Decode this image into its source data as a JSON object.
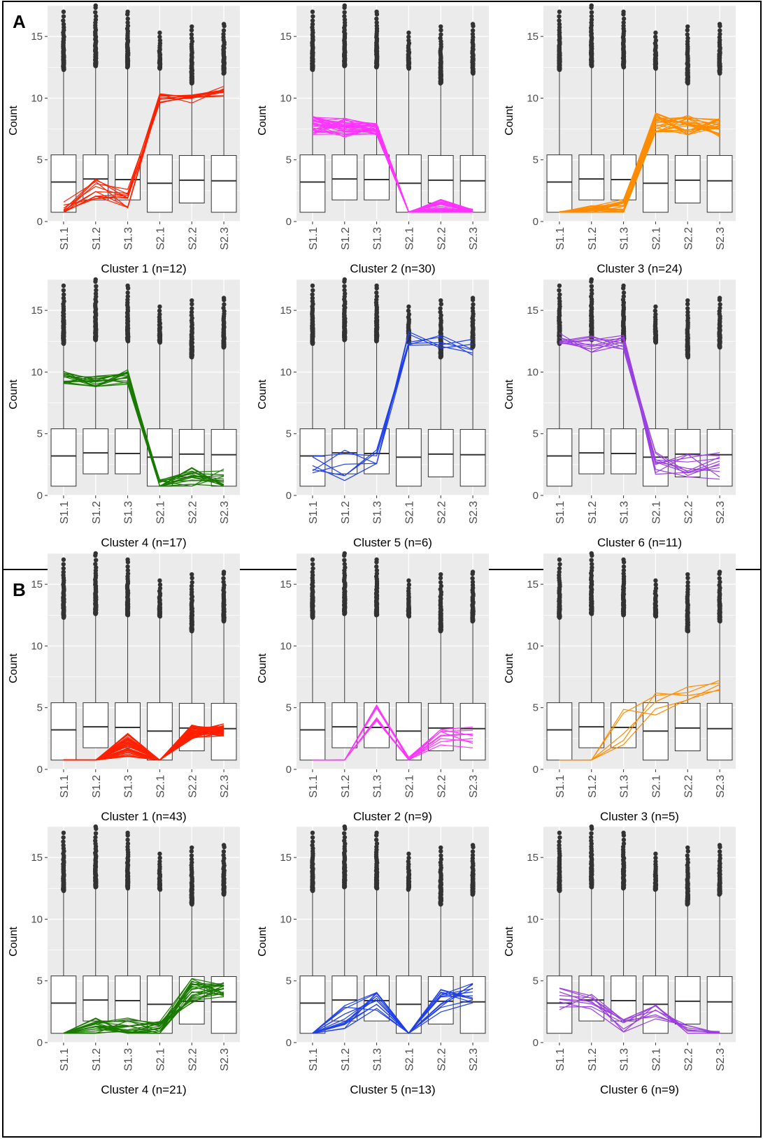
{
  "figure": {
    "panels": [
      {
        "label": "A",
        "clusters": [
          0,
          1,
          2,
          3,
          4,
          5
        ]
      },
      {
        "label": "B",
        "clusters": [
          6,
          7,
          8,
          9,
          10,
          11
        ]
      }
    ]
  },
  "colors": {
    "plot_bg": "#EBEBEB",
    "grid": "#FFFFFF",
    "box_edge": "#333333",
    "outlier": "#333333",
    "red": "#FF2000",
    "magenta": "#FF33FF",
    "orange": "#FF8C00",
    "green": "#1A7A00",
    "blue": "#1F3FE8",
    "purple": "#9A3FE0"
  },
  "chart_data": [
    {
      "type": "box+line",
      "panel": "A",
      "title": "Cluster 1 (n=12)",
      "ylabel": "Count",
      "categories": [
        "S1.1",
        "S1.2",
        "S1.3",
        "S2.1",
        "S2.2",
        "S2.3"
      ],
      "ylim": [
        0,
        17.5
      ],
      "yticks": [
        0,
        5,
        10,
        15
      ],
      "line_color": "red",
      "n_lines": 12,
      "profile": [
        0.8,
        2.5,
        1.8,
        10,
        10,
        10.5
      ],
      "spread": [
        0.8,
        1,
        0.9,
        0.4,
        0.4,
        0.5
      ]
    },
    {
      "type": "box+line",
      "panel": "A",
      "title": "Cluster 2 (n=30)",
      "ylabel": "Count",
      "categories": [
        "S1.1",
        "S1.2",
        "S1.3",
        "S2.1",
        "S2.2",
        "S2.3"
      ],
      "ylim": [
        0,
        17.5
      ],
      "yticks": [
        0,
        5,
        10,
        15
      ],
      "line_color": "magenta",
      "n_lines": 30,
      "profile": [
        7.8,
        7.6,
        7.5,
        0.75,
        1.2,
        0.8
      ],
      "spread": [
        0.8,
        0.8,
        0.5,
        0.05,
        0.6,
        0.2
      ]
    },
    {
      "type": "box+line",
      "panel": "A",
      "title": "Cluster 3 (n=24)",
      "ylabel": "Count",
      "categories": [
        "S1.1",
        "S1.2",
        "S1.3",
        "S2.1",
        "S2.2",
        "S2.3"
      ],
      "ylim": [
        0,
        17.5
      ],
      "yticks": [
        0,
        5,
        10,
        15
      ],
      "line_color": "orange",
      "n_lines": 24,
      "profile": [
        0.75,
        0.9,
        1.2,
        8,
        7.8,
        7.6
      ],
      "spread": [
        0.05,
        0.4,
        0.6,
        0.8,
        0.8,
        0.8
      ]
    },
    {
      "type": "box+line",
      "panel": "A",
      "title": "Cluster 4 (n=17)",
      "ylabel": "Count",
      "categories": [
        "S1.1",
        "S1.2",
        "S1.3",
        "S2.1",
        "S2.2",
        "S2.3"
      ],
      "ylim": [
        0,
        17.5
      ],
      "yticks": [
        0,
        5,
        10,
        15
      ],
      "line_color": "green",
      "n_lines": 17,
      "profile": [
        9.5,
        9,
        9.6,
        0.8,
        1.5,
        1.2
      ],
      "spread": [
        0.6,
        0.8,
        0.6,
        0.5,
        0.8,
        1
      ]
    },
    {
      "type": "box+line",
      "panel": "A",
      "title": "Cluster 5 (n=6)",
      "ylabel": "Count",
      "categories": [
        "S1.1",
        "S1.2",
        "S1.3",
        "S2.1",
        "S2.2",
        "S2.3"
      ],
      "ylim": [
        0,
        17.5
      ],
      "yticks": [
        0,
        5,
        10,
        15
      ],
      "line_color": "blue",
      "n_lines": 6,
      "profile": [
        2.2,
        2.5,
        2.7,
        12.8,
        12.4,
        12
      ],
      "spread": [
        1,
        1.5,
        1,
        0.8,
        0.6,
        0.8
      ]
    },
    {
      "type": "box+line",
      "panel": "A",
      "title": "Cluster 6 (n=11)",
      "ylabel": "Count",
      "categories": [
        "S1.1",
        "S1.2",
        "S1.3",
        "S2.1",
        "S2.2",
        "S2.3"
      ],
      "ylim": [
        0,
        17.5
      ],
      "yticks": [
        0,
        5,
        10,
        15
      ],
      "line_color": "purple",
      "n_lines": 11,
      "profile": [
        12.6,
        12.3,
        12.4,
        2.6,
        2.5,
        2.3
      ],
      "spread": [
        0.6,
        0.7,
        0.6,
        1,
        1,
        1.2
      ]
    },
    {
      "type": "box+line",
      "panel": "B",
      "title": "Cluster 1 (n=43)",
      "ylabel": "Count",
      "categories": [
        "S1.1",
        "S1.2",
        "S1.3",
        "S2.1",
        "S2.2",
        "S2.3"
      ],
      "ylim": [
        0,
        17.5
      ],
      "yticks": [
        0,
        5,
        10,
        15
      ],
      "line_color": "red",
      "n_lines": 43,
      "profile": [
        0.75,
        0.75,
        2,
        0.75,
        3,
        3.2
      ],
      "spread": [
        0.02,
        0.02,
        1,
        0.02,
        0.6,
        0.5
      ]
    },
    {
      "type": "box+line",
      "panel": "B",
      "title": "Cluster 2 (n=9)",
      "ylabel": "Count",
      "categories": [
        "S1.1",
        "S1.2",
        "S1.3",
        "S2.1",
        "S2.2",
        "S2.3"
      ],
      "ylim": [
        0,
        17.5
      ],
      "yticks": [
        0,
        5,
        10,
        15
      ],
      "line_color": "magenta",
      "n_lines": 9,
      "profile": [
        0.75,
        0.75,
        4.8,
        0.8,
        2.6,
        2.6
      ],
      "spread": [
        0.02,
        0.02,
        1,
        0.2,
        1,
        1
      ]
    },
    {
      "type": "box+line",
      "panel": "B",
      "title": "Cluster 3 (n=5)",
      "ylabel": "Count",
      "categories": [
        "S1.1",
        "S1.2",
        "S1.3",
        "S2.1",
        "S2.2",
        "S2.3"
      ],
      "ylim": [
        0,
        17.5
      ],
      "yticks": [
        0,
        5,
        10,
        15
      ],
      "line_color": "orange",
      "n_lines": 5,
      "profile": [
        0.75,
        0.75,
        3.5,
        5,
        6,
        6.8
      ],
      "spread": [
        0.02,
        0.02,
        2,
        1.2,
        0.7,
        0.8
      ]
    },
    {
      "type": "box+line",
      "panel": "B",
      "title": "Cluster 4 (n=21)",
      "ylabel": "Count",
      "categories": [
        "S1.1",
        "S1.2",
        "S1.3",
        "S2.1",
        "S2.2",
        "S2.3"
      ],
      "ylim": [
        0,
        17.5
      ],
      "yticks": [
        0,
        5,
        10,
        15
      ],
      "line_color": "green",
      "n_lines": 21,
      "profile": [
        0.75,
        1.2,
        1.2,
        1,
        4.2,
        4.3
      ],
      "spread": [
        0.02,
        0.8,
        0.8,
        0.8,
        1,
        0.6
      ]
    },
    {
      "type": "box+line",
      "panel": "B",
      "title": "Cluster 5 (n=13)",
      "ylabel": "Count",
      "categories": [
        "S1.1",
        "S1.2",
        "S1.3",
        "S2.1",
        "S2.2",
        "S2.3"
      ],
      "ylim": [
        0,
        17.5
      ],
      "yticks": [
        0,
        5,
        10,
        15
      ],
      "line_color": "blue",
      "n_lines": 13,
      "profile": [
        0.75,
        2.2,
        3.3,
        0.75,
        3.3,
        4
      ],
      "spread": [
        0.02,
        1.2,
        0.8,
        0.02,
        1,
        0.8
      ]
    },
    {
      "type": "box+line",
      "panel": "B",
      "title": "Cluster 6 (n=9)",
      "ylabel": "Count",
      "categories": [
        "S1.1",
        "S1.2",
        "S1.3",
        "S2.1",
        "S2.2",
        "S2.3"
      ],
      "ylim": [
        0,
        17.5
      ],
      "yticks": [
        0,
        5,
        10,
        15
      ],
      "line_color": "purple",
      "n_lines": 9,
      "profile": [
        3.5,
        3.2,
        1.8,
        2.5,
        1,
        0.8
      ],
      "spread": [
        1,
        0.8,
        1,
        0.8,
        0.4,
        0.1
      ]
    }
  ],
  "background_boxes": {
    "S1.1": {
      "q1": 0.75,
      "median": 3.2,
      "q3": 5.4,
      "whisker_high": 12.3,
      "max": 17.0
    },
    "S1.2": {
      "q1": 1.75,
      "median": 3.45,
      "q3": 5.4,
      "whisker_high": 12.6,
      "max": 17.5
    },
    "S1.3": {
      "q1": 1.75,
      "median": 3.4,
      "q3": 5.4,
      "whisker_high": 12.5,
      "max": 17.0
    },
    "S2.1": {
      "q1": 0.75,
      "median": 3.1,
      "q3": 5.4,
      "whisker_high": 12.4,
      "max": 15.3
    },
    "S2.2": {
      "q1": 1.5,
      "median": 3.35,
      "q3": 5.35,
      "whisker_high": 11.2,
      "max": 15.8
    },
    "S2.3": {
      "q1": 0.75,
      "median": 3.3,
      "q3": 5.35,
      "whisker_high": 12.0,
      "max": 16.0
    }
  }
}
